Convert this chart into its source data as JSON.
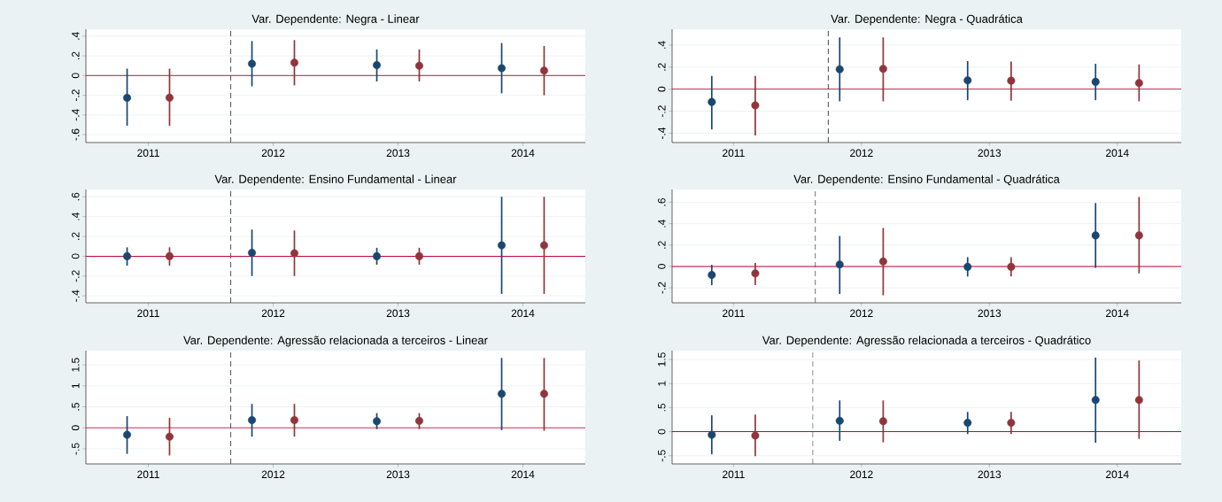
{
  "chart_data": [
    {
      "type": "scatter",
      "title": "Var. Dependente: Negra - Linear",
      "xlim": [
        2010.5,
        2014.5
      ],
      "xticks": [
        2011,
        2012,
        2013,
        2014
      ],
      "ylim": [
        -0.68,
        0.47
      ],
      "yticks": [
        {
          "value": -0.6,
          "label": "-.6"
        },
        {
          "value": -0.4,
          "label": "-.4"
        },
        {
          "value": -0.2,
          "label": "-.2"
        },
        0,
        {
          "value": 0.2,
          "label": ".2"
        },
        {
          "value": 0.4,
          "label": ".4"
        }
      ],
      "grid": "y",
      "marker": "circle",
      "ref_lines": [
        {
          "axis": "y",
          "value": 0,
          "color": "#c10534"
        },
        {
          "axis": "x",
          "value": 2011.66,
          "color": "#555555",
          "line_style": "dashed"
        }
      ],
      "series": [
        {
          "color": "#1a476f",
          "x": [
            2010.83,
            2011.83,
            2012.83,
            2013.83
          ],
          "values": [
            -0.226,
            0.12,
            0.105,
            0.075
          ],
          "errors": [
            [
              -0.51,
              0.07
            ],
            [
              -0.11,
              0.35
            ],
            [
              -0.06,
              0.265
            ],
            [
              -0.18,
              0.33
            ]
          ]
        },
        {
          "color": "#90353b",
          "x": [
            2011.17,
            2012.17,
            2013.17,
            2014.17
          ],
          "values": [
            -0.225,
            0.13,
            0.1,
            0.05
          ],
          "errors": [
            [
              -0.51,
              0.07
            ],
            [
              -0.1,
              0.36
            ],
            [
              -0.06,
              0.265
            ],
            [
              -0.2,
              0.3
            ]
          ]
        }
      ]
    },
    {
      "type": "scatter",
      "title": "Var. Dependente: Negra - Quadrática",
      "xlim": [
        2010.52,
        2014.5
      ],
      "xticks": [
        2011,
        2012,
        2013,
        2014
      ],
      "ylim": [
        -0.484,
        0.544
      ],
      "yticks": [
        {
          "value": -0.4,
          "label": "-.4"
        },
        {
          "value": -0.2,
          "label": "-.2"
        },
        0,
        {
          "value": 0.2,
          "label": ".2"
        },
        {
          "value": 0.4,
          "label": ".4"
        }
      ],
      "grid": "y",
      "marker": "circle",
      "ref_lines": [
        {
          "axis": "y",
          "value": 0,
          "color": "#c10534"
        },
        {
          "axis": "x",
          "value": 2011.74,
          "color": "#333333",
          "line_style": "dashed"
        }
      ],
      "series": [
        {
          "color": "#1a476f",
          "x": [
            2010.83,
            2011.83,
            2012.83,
            2013.83
          ],
          "values": [
            -0.116,
            0.18,
            0.08,
            0.067
          ],
          "errors": [
            [
              -0.365,
              0.12
            ],
            [
              -0.11,
              0.47
            ],
            [
              -0.1,
              0.255
            ],
            [
              -0.1,
              0.23
            ]
          ]
        },
        {
          "color": "#90353b",
          "x": [
            2011.17,
            2012.17,
            2013.17,
            2014.17
          ],
          "values": [
            -0.147,
            0.185,
            0.077,
            0.056
          ],
          "errors": [
            [
              -0.42,
              0.12
            ],
            [
              -0.11,
              0.47
            ],
            [
              -0.105,
              0.25
            ],
            [
              -0.11,
              0.225
            ]
          ]
        }
      ]
    },
    {
      "type": "scatter",
      "title": "Var. Dependente: Ensino Fundamental - Linear",
      "xlim": [
        2010.5,
        2014.5
      ],
      "xticks": [
        2011,
        2012,
        2013,
        2014
      ],
      "ylim": [
        -0.47,
        0.674
      ],
      "yticks": [
        {
          "value": -0.4,
          "label": "-.4"
        },
        {
          "value": -0.2,
          "label": "-.2"
        },
        0,
        {
          "value": 0.2,
          "label": ".2"
        },
        {
          "value": 0.4,
          "label": ".4"
        },
        {
          "value": 0.6,
          "label": ".6"
        }
      ],
      "grid": "y",
      "marker": "circle",
      "ref_lines": [
        {
          "axis": "y",
          "value": 0,
          "color": "#c10534"
        },
        {
          "axis": "x",
          "value": 2011.66,
          "color": "#555555",
          "line_style": "dashed"
        }
      ],
      "series": [
        {
          "color": "#1a476f",
          "x": [
            2010.83,
            2011.83,
            2012.83,
            2013.83
          ],
          "values": [
            0,
            0.035,
            0,
            0.11
          ],
          "errors": [
            [
              -0.095,
              0.09
            ],
            [
              -0.2,
              0.27
            ],
            [
              -0.085,
              0.085
            ],
            [
              -0.38,
              0.6
            ]
          ]
        },
        {
          "color": "#90353b",
          "x": [
            2011.17,
            2012.17,
            2013.17,
            2014.17
          ],
          "values": [
            0,
            0.03,
            0,
            0.11
          ],
          "errors": [
            [
              -0.095,
              0.09
            ],
            [
              -0.2,
              0.26
            ],
            [
              -0.085,
              0.085
            ],
            [
              -0.38,
              0.6
            ]
          ]
        }
      ]
    },
    {
      "type": "scatter",
      "title": "Var. Dependente: Ensino Fundamental - Quadrática",
      "xlim": [
        2010.52,
        2014.5
      ],
      "xticks": [
        2011,
        2012,
        2013,
        2014
      ],
      "ylim": [
        -0.34,
        0.72
      ],
      "yticks": [
        {
          "value": -0.2,
          "label": "-.2"
        },
        0,
        {
          "value": 0.2,
          "label": ".2"
        },
        {
          "value": 0.4,
          "label": ".4"
        },
        {
          "value": 0.6,
          "label": ".6"
        }
      ],
      "grid": "y",
      "marker": "circle",
      "ref_lines": [
        {
          "axis": "y",
          "value": 0,
          "color": "#c10534"
        },
        {
          "axis": "x",
          "value": 2011.64,
          "color": "#555555",
          "line_style": "dashed"
        }
      ],
      "series": [
        {
          "color": "#1a476f",
          "x": [
            2010.83,
            2011.83,
            2012.83,
            2013.83
          ],
          "values": [
            -0.08,
            0.018,
            -0.004,
            0.29
          ],
          "errors": [
            [
              -0.175,
              0.015
            ],
            [
              -0.257,
              0.285
            ],
            [
              -0.094,
              0.087
            ],
            [
              -0.014,
              0.593
            ]
          ]
        },
        {
          "color": "#90353b",
          "x": [
            2011.17,
            2012.17,
            2013.17,
            2014.17
          ],
          "values": [
            -0.065,
            0.047,
            -0.004,
            0.29
          ],
          "errors": [
            [
              -0.175,
              0.033
            ],
            [
              -0.27,
              0.36
            ],
            [
              -0.094,
              0.087
            ],
            [
              -0.065,
              0.65
            ]
          ]
        }
      ]
    },
    {
      "type": "scatter",
      "title": "Var. Dependente: Agressão relacionada a terceiros - Linear",
      "xlim": [
        2010.5,
        2014.5
      ],
      "xticks": [
        2011,
        2012,
        2013,
        2014
      ],
      "ylim": [
        -0.86,
        1.84
      ],
      "yticks": [
        {
          "value": -0.5,
          "label": "-.5"
        },
        0,
        {
          "value": 0.5,
          "label": ".5"
        },
        1,
        1.5
      ],
      "grid": "y",
      "marker": "circle",
      "ref_lines": [
        {
          "axis": "y",
          "value": 0,
          "color": "#c10534"
        },
        {
          "axis": "x",
          "value": 2011.66,
          "color": "#555555",
          "line_style": "dashed"
        }
      ],
      "series": [
        {
          "color": "#1a476f",
          "x": [
            2010.83,
            2011.83,
            2012.83,
            2013.83
          ],
          "values": [
            -0.166,
            0.184,
            0.156,
            0.81
          ],
          "errors": [
            [
              -0.62,
              0.28
            ],
            [
              -0.21,
              0.57
            ],
            [
              -0.03,
              0.35
            ],
            [
              -0.055,
              1.665
            ]
          ]
        },
        {
          "color": "#90353b",
          "x": [
            2011.17,
            2012.17,
            2013.17,
            2014.17
          ],
          "values": [
            -0.21,
            0.184,
            0.166,
            0.81
          ],
          "errors": [
            [
              -0.66,
              0.24
            ],
            [
              -0.21,
              0.57
            ],
            [
              -0.03,
              0.35
            ],
            [
              -0.07,
              1.665
            ]
          ]
        }
      ]
    },
    {
      "type": "scatter",
      "title": "Var. Dependente: Agressão relacionada a terceiros - Quadrático",
      "xlim": [
        2010.52,
        2014.5
      ],
      "xticks": [
        2011,
        2012,
        2013,
        2014
      ],
      "ylim": [
        -0.67,
        1.685
      ],
      "yticks": [
        {
          "value": -0.5,
          "label": "-.5"
        },
        0,
        {
          "value": 0.5,
          "label": ".5"
        },
        1,
        1.5
      ],
      "grid": "y",
      "marker": "circle",
      "ref_lines": [
        {
          "axis": "y",
          "value": 0,
          "color": "#c10534"
        },
        {
          "axis": "x",
          "value": 2011.62,
          "color": "#222222",
          "line_style": "dashed"
        }
      ],
      "series": [
        {
          "color": "#1a476f",
          "x": [
            2010.83,
            2011.83,
            2012.83,
            2013.83
          ],
          "values": [
            -0.065,
            0.226,
            0.185,
            0.66
          ],
          "errors": [
            [
              -0.47,
              0.34
            ],
            [
              -0.19,
              0.65
            ],
            [
              -0.05,
              0.41
            ],
            [
              -0.23,
              1.54
            ]
          ]
        },
        {
          "color": "#90353b",
          "x": [
            2011.17,
            2012.17,
            2013.17,
            2014.17
          ],
          "values": [
            -0.08,
            0.218,
            0.185,
            0.66
          ],
          "errors": [
            [
              -0.51,
              0.355
            ],
            [
              -0.22,
              0.65
            ],
            [
              -0.05,
              0.41
            ],
            [
              -0.15,
              1.48
            ]
          ]
        }
      ]
    }
  ]
}
